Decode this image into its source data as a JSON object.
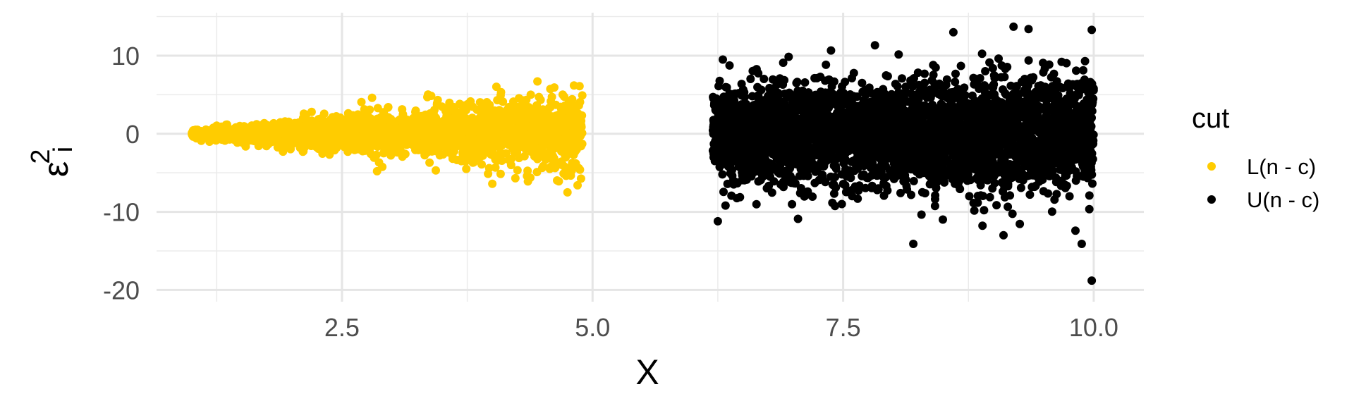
{
  "chart_data": {
    "type": "scatter",
    "xlabel": "X",
    "ylabel_base": "ε",
    "ylabel_sup": "2",
    "ylabel_sub": "i",
    "xlim": [
      0.65,
      10.5
    ],
    "ylim": [
      -21.5,
      15.5
    ],
    "x_ticks": [
      2.5,
      5.0,
      7.5,
      10.0
    ],
    "x_tick_labels": [
      "2.5",
      "5.0",
      "7.5",
      "10.0"
    ],
    "x_minor_ticks": [
      1.25,
      3.75,
      6.25,
      8.75
    ],
    "y_ticks": [
      10,
      0,
      -10,
      -20
    ],
    "y_tick_labels": [
      "10",
      "0",
      "-10",
      "-20"
    ],
    "y_minor_ticks": [
      15,
      5,
      -5,
      -15
    ],
    "grid": true,
    "legend": {
      "title": "cut",
      "placement": "right"
    },
    "series": [
      {
        "name": "L(n - c)",
        "color": "#FFCC00",
        "x_range": [
          1.0,
          4.9
        ],
        "spread": "widens with x, about ±1.3 at x=1 to about ±6 at x=4.9",
        "extremes": [
          {
            "x": 4.45,
            "y": 6.7
          },
          {
            "x": 4.87,
            "y": 6.1
          },
          {
            "x": 4.75,
            "y": -7.5
          },
          {
            "x": 4.85,
            "y": -6.6
          },
          {
            "x": 4.0,
            "y": -6.4
          },
          {
            "x": 2.8,
            "y": 4.6
          },
          {
            "x": 2.85,
            "y": -4.8
          }
        ]
      },
      {
        "name": "U(n - c)",
        "color": "#000000",
        "x_range": [
          6.2,
          10.0
        ],
        "spread": "roughly constant, about ±7 to ±10 with outliers",
        "extremes": [
          {
            "x": 9.98,
            "y": -18.8
          },
          {
            "x": 9.88,
            "y": -14.1
          },
          {
            "x": 8.2,
            "y": -14.1
          },
          {
            "x": 9.2,
            "y": 13.7
          },
          {
            "x": 9.35,
            "y": 13.4
          },
          {
            "x": 9.98,
            "y": 13.3
          },
          {
            "x": 8.6,
            "y": 13.0
          },
          {
            "x": 6.25,
            "y": -11.2
          },
          {
            "x": 6.3,
            "y": 9.5
          },
          {
            "x": 7.05,
            "y": -10.9
          },
          {
            "x": 9.1,
            "y": -13.0
          }
        ]
      }
    ]
  }
}
